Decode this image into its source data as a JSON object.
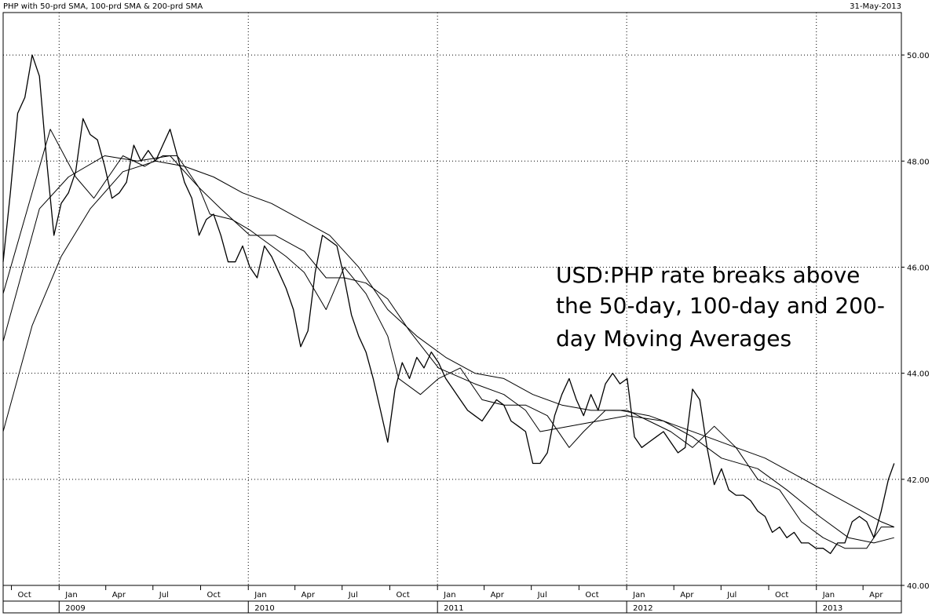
{
  "header": {
    "title": "PHP with 50-prd SMA, 100-prd SMA & 200-prd SMA",
    "date": "31-May-2013"
  },
  "chart_data": {
    "type": "line",
    "title": "PHP with 50-prd SMA, 100-prd SMA & 200-prd SMA",
    "ylim": [
      40,
      50.8
    ],
    "xlim": [
      "2008-09-15",
      "2013-06-14"
    ],
    "y_ticks": [
      "40.00",
      "42.00",
      "44.00",
      "46.00",
      "48.00",
      "50.00"
    ],
    "month_ticks": [
      {
        "date": "2008-10-01",
        "label": "Oct"
      },
      {
        "date": "2009-01-01",
        "label": "Jan"
      },
      {
        "date": "2009-04-01",
        "label": "Apr"
      },
      {
        "date": "2009-07-01",
        "label": "Jul"
      },
      {
        "date": "2009-10-01",
        "label": "Oct"
      },
      {
        "date": "2010-01-01",
        "label": "Jan"
      },
      {
        "date": "2010-04-01",
        "label": "Apr"
      },
      {
        "date": "2010-07-01",
        "label": "Jul"
      },
      {
        "date": "2010-10-01",
        "label": "Oct"
      },
      {
        "date": "2011-01-01",
        "label": "Jan"
      },
      {
        "date": "2011-04-01",
        "label": "Apr"
      },
      {
        "date": "2011-07-01",
        "label": "Jul"
      },
      {
        "date": "2011-10-01",
        "label": "Oct"
      },
      {
        "date": "2012-01-01",
        "label": "Jan"
      },
      {
        "date": "2012-04-01",
        "label": "Apr"
      },
      {
        "date": "2012-07-01",
        "label": "Jul"
      },
      {
        "date": "2012-10-01",
        "label": "Oct"
      },
      {
        "date": "2013-01-01",
        "label": "Jan"
      },
      {
        "date": "2013-04-01",
        "label": "Apr"
      }
    ],
    "year_ticks": [
      {
        "date": "2009-01-01",
        "label": "2009"
      },
      {
        "date": "2010-01-01",
        "label": "2010"
      },
      {
        "date": "2011-01-01",
        "label": "2011"
      },
      {
        "date": "2012-01-01",
        "label": "2012"
      },
      {
        "date": "2013-01-01",
        "label": "2013"
      }
    ],
    "grid": "dotted",
    "annotation": [
      "USD:PHP rate breaks above",
      "the 50-day, 100-day and 200-",
      "day Moving Averages"
    ],
    "series": [
      {
        "x": [
          "2008-09-15",
          "2008-09-29",
          "2008-10-13",
          "2008-10-27",
          "2008-11-10",
          "2008-11-24",
          "2008-12-08",
          "2008-12-22",
          "2009-01-05",
          "2009-01-19",
          "2009-02-02",
          "2009-02-16",
          "2009-03-02",
          "2009-03-16",
          "2009-03-30",
          "2009-04-13",
          "2009-04-27",
          "2009-05-11",
          "2009-05-25",
          "2009-06-08",
          "2009-06-22",
          "2009-07-06",
          "2009-07-20",
          "2009-08-03",
          "2009-08-17",
          "2009-08-31",
          "2009-09-14",
          "2009-09-28",
          "2009-10-12",
          "2009-10-26",
          "2009-11-09",
          "2009-11-23",
          "2009-12-07",
          "2009-12-21",
          "2010-01-04",
          "2010-01-18",
          "2010-02-01",
          "2010-02-15",
          "2010-03-01",
          "2010-03-15",
          "2010-03-29",
          "2010-04-12",
          "2010-04-26",
          "2010-05-10",
          "2010-05-24",
          "2010-06-07",
          "2010-06-21",
          "2010-07-05",
          "2010-07-19",
          "2010-08-02",
          "2010-08-16",
          "2010-08-30",
          "2010-09-13",
          "2010-09-27",
          "2010-10-11",
          "2010-10-25",
          "2010-11-08",
          "2010-11-22",
          "2010-12-06",
          "2010-12-20",
          "2011-01-03",
          "2011-01-17",
          "2011-01-31",
          "2011-02-14",
          "2011-02-28",
          "2011-03-14",
          "2011-03-28",
          "2011-04-11",
          "2011-04-25",
          "2011-05-09",
          "2011-05-23",
          "2011-06-06",
          "2011-06-20",
          "2011-07-04",
          "2011-07-18",
          "2011-08-01",
          "2011-08-15",
          "2011-08-29",
          "2011-09-12",
          "2011-09-26",
          "2011-10-10",
          "2011-10-24",
          "2011-11-07",
          "2011-11-21",
          "2011-12-05",
          "2011-12-19",
          "2012-01-02",
          "2012-01-16",
          "2012-01-30",
          "2012-02-13",
          "2012-02-27",
          "2012-03-12",
          "2012-03-26",
          "2012-04-09",
          "2012-04-23",
          "2012-05-07",
          "2012-05-21",
          "2012-06-04",
          "2012-06-18",
          "2012-07-02",
          "2012-07-16",
          "2012-07-30",
          "2012-08-13",
          "2012-08-27",
          "2012-09-10",
          "2012-09-24",
          "2012-10-08",
          "2012-10-22",
          "2012-11-05",
          "2012-11-19",
          "2012-12-03",
          "2012-12-17",
          "2012-12-31",
          "2013-01-14",
          "2013-01-28",
          "2013-02-11",
          "2013-02-25",
          "2013-03-11",
          "2013-03-25",
          "2013-04-08",
          "2013-04-22",
          "2013-05-06",
          "2013-05-20",
          "2013-05-31"
        ],
        "values": [
          46.1,
          47.4,
          48.9,
          49.2,
          50.0,
          49.6,
          48.0,
          46.6,
          47.2,
          47.4,
          47.8,
          48.8,
          48.5,
          48.4,
          47.9,
          47.3,
          47.4,
          47.6,
          48.3,
          48.0,
          48.2,
          48.0,
          48.3,
          48.6,
          48.1,
          47.6,
          47.3,
          46.6,
          46.9,
          47.0,
          46.6,
          46.1,
          46.1,
          46.4,
          46.0,
          45.8,
          46.4,
          46.2,
          45.9,
          45.6,
          45.2,
          44.5,
          44.8,
          45.9,
          46.6,
          46.5,
          46.4,
          45.8,
          45.1,
          44.7,
          44.4,
          43.9,
          43.3,
          42.7,
          43.7,
          44.2,
          43.9,
          44.3,
          44.1,
          44.4,
          44.2,
          43.9,
          43.7,
          43.5,
          43.3,
          43.2,
          43.1,
          43.3,
          43.5,
          43.4,
          43.1,
          43.0,
          42.9,
          42.3,
          42.3,
          42.5,
          43.2,
          43.6,
          43.9,
          43.5,
          43.2,
          43.6,
          43.3,
          43.8,
          44.0,
          43.8,
          43.9,
          42.8,
          42.6,
          42.7,
          42.8,
          42.9,
          42.7,
          42.5,
          42.6,
          43.7,
          43.5,
          42.6,
          41.9,
          42.2,
          41.8,
          41.7,
          41.7,
          41.6,
          41.4,
          41.3,
          41.0,
          41.1,
          40.9,
          41.0,
          40.8,
          40.8,
          40.7,
          40.7,
          40.6,
          40.8,
          40.8,
          41.2,
          41.3,
          41.2,
          40.9,
          41.4,
          42.0,
          42.3
        ]
      },
      {
        "name": "50-prd SMA",
        "x": [
          "2008-09-15",
          "2008-12-15",
          "2009-02-02",
          "2009-03-09",
          "2009-05-04",
          "2009-06-15",
          "2009-07-20",
          "2009-08-17",
          "2009-09-28",
          "2009-10-19",
          "2009-11-30",
          "2010-01-04",
          "2010-02-15",
          "2010-03-15",
          "2010-04-19",
          "2010-05-31",
          "2010-07-05",
          "2010-08-16",
          "2010-09-27",
          "2010-10-18",
          "2010-11-29",
          "2011-01-03",
          "2011-02-14",
          "2011-03-28",
          "2011-05-09",
          "2011-06-20",
          "2011-08-01",
          "2011-09-12",
          "2011-10-10",
          "2011-11-21",
          "2012-01-02",
          "2012-02-13",
          "2012-03-26",
          "2012-05-07",
          "2012-06-18",
          "2012-07-30",
          "2012-09-10",
          "2012-10-22",
          "2012-12-03",
          "2013-01-14",
          "2013-02-25",
          "2013-04-08",
          "2013-05-06",
          "2013-05-31"
        ],
        "values": [
          45.5,
          48.6,
          47.7,
          47.3,
          48.1,
          47.9,
          48.1,
          48.1,
          47.5,
          47.0,
          46.9,
          46.7,
          46.4,
          46.2,
          45.9,
          45.2,
          46.0,
          45.5,
          44.7,
          43.9,
          43.6,
          43.9,
          44.1,
          43.5,
          43.4,
          43.4,
          43.2,
          42.6,
          42.9,
          43.3,
          43.3,
          43.1,
          42.9,
          42.6,
          43.0,
          42.6,
          42.0,
          41.8,
          41.2,
          40.9,
          40.7,
          40.7,
          41.1,
          41.1
        ]
      },
      {
        "name": "100-prd SMA",
        "x": [
          "2008-09-15",
          "2008-11-24",
          "2009-01-19",
          "2009-03-30",
          "2009-06-01",
          "2009-08-03",
          "2009-09-28",
          "2009-11-09",
          "2010-01-04",
          "2010-02-22",
          "2010-04-19",
          "2010-05-31",
          "2010-07-05",
          "2010-08-16",
          "2010-09-27",
          "2010-11-08",
          "2011-01-03",
          "2011-03-14",
          "2011-05-09",
          "2011-06-20",
          "2011-07-18",
          "2011-09-12",
          "2011-11-07",
          "2012-01-02",
          "2012-03-12",
          "2012-05-07",
          "2012-07-02",
          "2012-09-10",
          "2012-11-05",
          "2013-01-07",
          "2013-03-04",
          "2013-04-22",
          "2013-05-31"
        ],
        "values": [
          44.6,
          47.1,
          47.7,
          48.1,
          48.0,
          48.1,
          47.5,
          47.1,
          46.6,
          46.6,
          46.3,
          45.8,
          45.8,
          45.7,
          45.4,
          44.8,
          44.1,
          43.8,
          43.6,
          43.3,
          42.9,
          43.0,
          43.1,
          43.2,
          43.1,
          42.8,
          42.4,
          42.2,
          41.8,
          41.3,
          40.9,
          40.8,
          40.9
        ]
      },
      {
        "name": "200-prd SMA",
        "x": [
          "2008-09-15",
          "2008-11-10",
          "2009-01-05",
          "2009-03-02",
          "2009-05-04",
          "2009-07-06",
          "2009-08-31",
          "2009-10-26",
          "2009-12-21",
          "2010-02-15",
          "2010-04-12",
          "2010-06-07",
          "2010-08-02",
          "2010-09-27",
          "2010-11-22",
          "2011-01-17",
          "2011-03-14",
          "2011-05-09",
          "2011-07-04",
          "2011-08-29",
          "2011-10-24",
          "2011-12-19",
          "2012-02-13",
          "2012-04-09",
          "2012-06-04",
          "2012-07-30",
          "2012-09-24",
          "2012-11-19",
          "2013-01-14",
          "2013-03-11",
          "2013-05-06",
          "2013-05-31"
        ],
        "values": [
          42.9,
          44.9,
          46.2,
          47.1,
          47.8,
          48.0,
          47.9,
          47.7,
          47.4,
          47.2,
          46.9,
          46.6,
          46.0,
          45.2,
          44.7,
          44.3,
          44.0,
          43.9,
          43.6,
          43.4,
          43.3,
          43.3,
          43.2,
          43.0,
          42.8,
          42.6,
          42.4,
          42.1,
          41.8,
          41.5,
          41.2,
          41.1
        ]
      }
    ]
  }
}
